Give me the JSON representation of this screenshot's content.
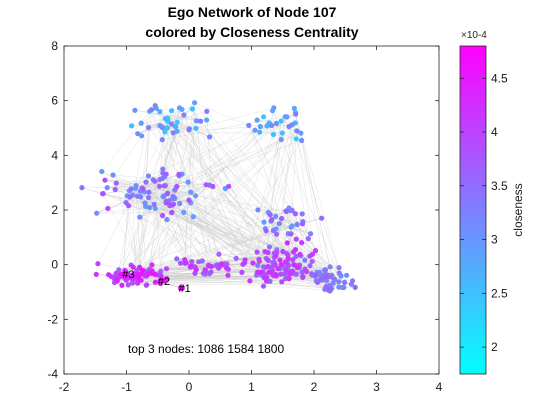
{
  "chart_data": {
    "type": "scatter",
    "title": [
      "Ego Network of Node 107",
      "colored by Closeness Centrality"
    ],
    "xlabel": "",
    "ylabel": "",
    "xlim": [
      -2,
      4
    ],
    "ylim": [
      -4,
      8
    ],
    "xticks": [
      "-2",
      "-1",
      "0",
      "1",
      "2",
      "3",
      "4"
    ],
    "yticks": [
      "-4",
      "-2",
      "0",
      "2",
      "4",
      "6",
      "8"
    ],
    "grid": false,
    "edge_color": "#c8c8c8",
    "colormap": {
      "low": "#00ffff",
      "high": "#ff00ff"
    },
    "colorbar": {
      "label": "closeness",
      "exponent": "×10-4",
      "range": [
        1.75,
        4.8
      ],
      "ticks": [
        "2",
        "2.5",
        "3",
        "3.5",
        "4",
        "4.5"
      ]
    },
    "clusters": [
      {
        "cx": -0.3,
        "cy": 5.3,
        "sx": 0.55,
        "sy": 0.6,
        "n": 40,
        "cmin": 2.4,
        "cmax": 3.4
      },
      {
        "cx": 1.5,
        "cy": 5.2,
        "sx": 0.45,
        "sy": 0.65,
        "n": 28,
        "cmin": 2.4,
        "cmax": 3.3
      },
      {
        "cx": -0.5,
        "cy": 2.6,
        "sx": 0.85,
        "sy": 0.8,
        "n": 80,
        "cmin": 2.9,
        "cmax": 3.9
      },
      {
        "cx": 1.6,
        "cy": 1.6,
        "sx": 0.55,
        "sy": 0.6,
        "n": 30,
        "cmin": 2.9,
        "cmax": 3.8
      },
      {
        "cx": -0.9,
        "cy": -0.4,
        "sx": 0.45,
        "sy": 0.3,
        "n": 70,
        "cmin": 3.6,
        "cmax": 4.6
      },
      {
        "cx": 0.3,
        "cy": -0.1,
        "sx": 0.6,
        "sy": 0.3,
        "n": 40,
        "cmin": 3.5,
        "cmax": 4.3
      },
      {
        "cx": 1.5,
        "cy": 0.0,
        "sx": 0.5,
        "sy": 0.75,
        "n": 100,
        "cmin": 3.3,
        "cmax": 4.3
      },
      {
        "cx": 2.25,
        "cy": -0.6,
        "sx": 0.3,
        "sy": 0.4,
        "n": 50,
        "cmin": 3.0,
        "cmax": 3.6
      }
    ],
    "top_nodes": [
      {
        "rank_label": "#1",
        "x": -0.12,
        "y": -0.85,
        "closeness": 4.75
      },
      {
        "rank_label": "#2",
        "x": -0.45,
        "y": -0.6,
        "closeness": 4.7
      },
      {
        "rank_label": "#3",
        "x": -1.02,
        "y": -0.35,
        "closeness": 4.7
      }
    ],
    "annotation": "top 3 nodes: 1086 1584 1800"
  }
}
